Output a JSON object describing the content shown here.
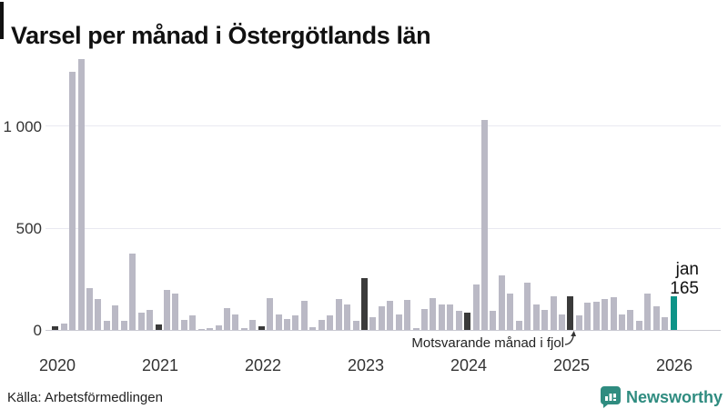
{
  "title": "Varsel per månad i Östergötlands län",
  "source": "Källa: Arbetsförmedlingen",
  "branding": {
    "name": "Newsworthy"
  },
  "annotation": {
    "text": "Motsvarande månad i fjol"
  },
  "current_point": {
    "month_label": "jan",
    "value_label": "165"
  },
  "colors": {
    "bar_default": "#bab9c5",
    "bar_reference_jan": "#3a3a3a",
    "bar_current": "#0d9488",
    "gridline": "#e9e9f1",
    "axis_line": "#c9c9d2",
    "brand_teal": "#2f8c80",
    "text": "#111111"
  },
  "y_axis": {
    "tick_labels": [
      "0",
      "500",
      "1 000"
    ],
    "tick_values": [
      0,
      500,
      1000
    ]
  },
  "x_axis": {
    "year_labels": [
      "2020",
      "2021",
      "2022",
      "2023",
      "2024",
      "2025",
      "2026"
    ]
  },
  "chart_data": {
    "type": "bar",
    "title": "Varsel per månad i Östergötlands län",
    "xlabel": "",
    "ylabel": "",
    "ylim": [
      0,
      1350
    ],
    "grid": "horizontal",
    "frequency": "monthly",
    "months": [
      "2020-01",
      "2020-02",
      "2020-03",
      "2020-04",
      "2020-05",
      "2020-06",
      "2020-07",
      "2020-08",
      "2020-09",
      "2020-10",
      "2020-11",
      "2020-12",
      "2021-01",
      "2021-02",
      "2021-03",
      "2021-04",
      "2021-05",
      "2021-06",
      "2021-07",
      "2021-08",
      "2021-09",
      "2021-10",
      "2021-11",
      "2021-12",
      "2022-01",
      "2022-02",
      "2022-03",
      "2022-04",
      "2022-05",
      "2022-06",
      "2022-07",
      "2022-08",
      "2022-09",
      "2022-10",
      "2022-11",
      "2022-12",
      "2023-01",
      "2023-02",
      "2023-03",
      "2023-04",
      "2023-05",
      "2023-06",
      "2023-07",
      "2023-08",
      "2023-09",
      "2023-10",
      "2023-11",
      "2023-12",
      "2024-01",
      "2024-02",
      "2024-03",
      "2024-04",
      "2024-05",
      "2024-06",
      "2024-07",
      "2024-08",
      "2024-09",
      "2024-10",
      "2024-11",
      "2024-12",
      "2025-01",
      "2025-02",
      "2025-03",
      "2025-04",
      "2025-05",
      "2025-06",
      "2025-07",
      "2025-08",
      "2025-09",
      "2025-10",
      "2025-11",
      "2025-12",
      "2026-01"
    ],
    "values": [
      18,
      30,
      1265,
      1325,
      203,
      152,
      45,
      121,
      45,
      373,
      85,
      100,
      25,
      198,
      180,
      47,
      72,
      3,
      10,
      22,
      106,
      77,
      8,
      47,
      20,
      158,
      77,
      52,
      72,
      143,
      13,
      47,
      70,
      151,
      126,
      43,
      255,
      62,
      117,
      143,
      74,
      148,
      10,
      102,
      158,
      124,
      124,
      92,
      85,
      222,
      1030,
      92,
      265,
      180,
      44,
      230,
      124,
      97,
      165,
      75,
      165,
      70,
      132,
      140,
      151,
      161,
      75,
      99,
      44,
      180,
      114,
      62,
      165
    ],
    "reference_january_indices": [
      0,
      12,
      24,
      36,
      48,
      60
    ],
    "current_index": 72,
    "current_value": 165,
    "legend": "none"
  }
}
